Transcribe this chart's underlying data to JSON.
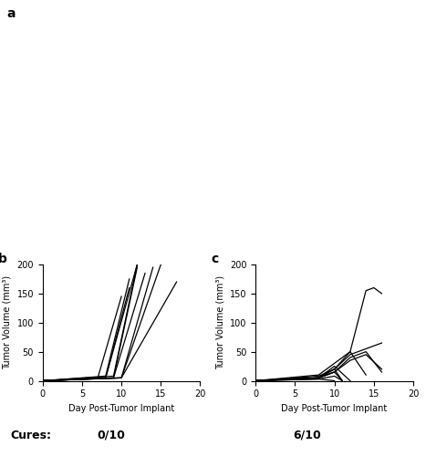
{
  "panel_b_label": "b",
  "panel_c_label": "c",
  "xlabel": "Day Post-Tumor Implant",
  "ylabel": "Tumor Volume (mm³)",
  "ylim": [
    0,
    200
  ],
  "xlim": [
    0,
    20
  ],
  "xticks": [
    0,
    5,
    10,
    15,
    20
  ],
  "yticks": [
    0,
    50,
    100,
    150,
    200
  ],
  "cures_label": "Cures:",
  "cures_b": "0/10",
  "cures_c": "6/10",
  "panel_b_curves": [
    [
      [
        0,
        7,
        10
      ],
      [
        0,
        5,
        145
      ]
    ],
    [
      [
        0,
        8,
        11
      ],
      [
        0,
        5,
        160
      ]
    ],
    [
      [
        0,
        8,
        11
      ],
      [
        0,
        8,
        175
      ]
    ],
    [
      [
        0,
        8,
        12
      ],
      [
        0,
        5,
        200
      ]
    ],
    [
      [
        0,
        9,
        12
      ],
      [
        0,
        5,
        195
      ]
    ],
    [
      [
        0,
        9,
        12
      ],
      [
        0,
        8,
        200
      ]
    ],
    [
      [
        0,
        9,
        13
      ],
      [
        0,
        5,
        185
      ]
    ],
    [
      [
        0,
        10,
        14
      ],
      [
        0,
        5,
        195
      ]
    ],
    [
      [
        0,
        10,
        15
      ],
      [
        0,
        5,
        200
      ]
    ],
    [
      [
        0,
        10,
        17
      ],
      [
        0,
        5,
        170
      ]
    ]
  ],
  "panel_c_curves": [
    [
      [
        0,
        8,
        10,
        12,
        14,
        15,
        16
      ],
      [
        0,
        10,
        30,
        50,
        155,
        160,
        150
      ]
    ],
    [
      [
        0,
        8,
        10,
        12,
        14,
        16
      ],
      [
        0,
        8,
        20,
        45,
        55,
        65
      ]
    ],
    [
      [
        0,
        8,
        10,
        12,
        14,
        16
      ],
      [
        0,
        5,
        15,
        35,
        45,
        20
      ]
    ],
    [
      [
        0,
        8,
        10,
        12,
        14,
        16
      ],
      [
        0,
        5,
        15,
        40,
        50,
        15
      ]
    ],
    [
      [
        0,
        8,
        10,
        12,
        14
      ],
      [
        0,
        5,
        20,
        50,
        10
      ]
    ],
    [
      [
        0,
        8,
        10,
        12
      ],
      [
        0,
        5,
        25,
        0
      ]
    ],
    [
      [
        0,
        8,
        10,
        11
      ],
      [
        0,
        5,
        20,
        0
      ]
    ],
    [
      [
        0,
        8,
        10,
        11
      ],
      [
        0,
        5,
        15,
        0
      ]
    ],
    [
      [
        0,
        8,
        10,
        11
      ],
      [
        0,
        3,
        8,
        0
      ]
    ],
    [
      [
        0,
        8,
        10
      ],
      [
        0,
        3,
        0
      ]
    ]
  ],
  "line_color": "#000000",
  "line_width": 0.9,
  "tick_font_size": 7,
  "label_font_size": 7,
  "cures_font_size": 9,
  "bg_color": "#ffffff",
  "footer_bg": "#d8d8d8",
  "top_panel_bg": "#ffffff"
}
